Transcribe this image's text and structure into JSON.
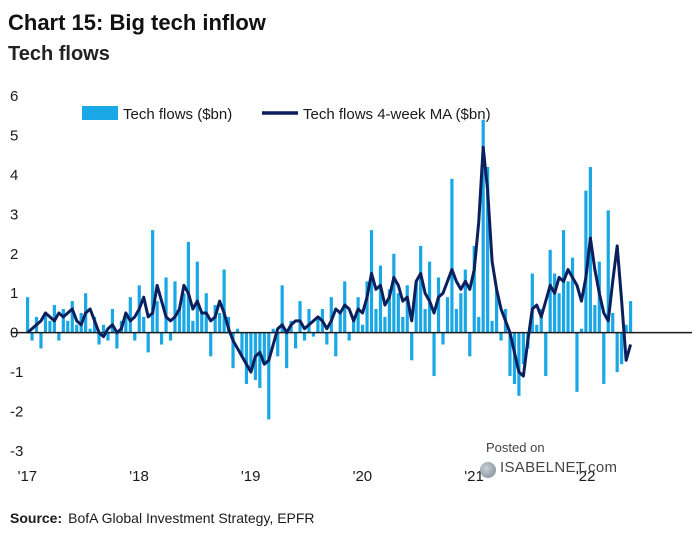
{
  "header": {
    "title": "Chart 15: Big tech inflow",
    "subtitle": "Tech flows"
  },
  "source": {
    "label": "Source:",
    "text": "BofA Global Investment Strategy, EPFR"
  },
  "watermark": {
    "posted": "Posted on",
    "brand": "ISABELNET.com"
  },
  "colors": {
    "bars": "#1aa7e6",
    "line": "#0b1f5c",
    "axis": "#1a1a1a"
  },
  "chart_data": {
    "type": "bar",
    "title": "Chart 15: Big tech inflow",
    "subtitle": "Tech flows",
    "xlabel": "",
    "ylabel": "",
    "ylim": [
      -3,
      6
    ],
    "yticks": [
      -3,
      -2,
      -1,
      0,
      1,
      2,
      3,
      4,
      5,
      6
    ],
    "ytick_labels": [
      "-3",
      "-2",
      "-1",
      "0",
      "1",
      "2",
      "3",
      "4",
      "5",
      "6"
    ],
    "xtick_labels": [
      "'17",
      "'18",
      "'19",
      "'20",
      "'21",
      "'22"
    ],
    "xlim": [
      2016.95,
      2022.95
    ],
    "grid": false,
    "legend_position": "top-left",
    "series": [
      {
        "name": "Tech flows ($bn)",
        "type": "bar",
        "x": [
          2017.0,
          2017.04,
          2017.08,
          2017.12,
          2017.16,
          2017.2,
          2017.24,
          2017.28,
          2017.32,
          2017.36,
          2017.4,
          2017.44,
          2017.48,
          2017.52,
          2017.56,
          2017.6,
          2017.64,
          2017.68,
          2017.72,
          2017.76,
          2017.8,
          2017.84,
          2017.88,
          2017.92,
          2017.96,
          2018.0,
          2018.04,
          2018.08,
          2018.12,
          2018.16,
          2018.2,
          2018.24,
          2018.28,
          2018.32,
          2018.36,
          2018.4,
          2018.44,
          2018.48,
          2018.52,
          2018.56,
          2018.6,
          2018.64,
          2018.68,
          2018.72,
          2018.76,
          2018.8,
          2018.84,
          2018.88,
          2018.92,
          2018.96,
          2019.0,
          2019.04,
          2019.08,
          2019.12,
          2019.16,
          2019.2,
          2019.24,
          2019.28,
          2019.32,
          2019.36,
          2019.4,
          2019.44,
          2019.48,
          2019.52,
          2019.56,
          2019.6,
          2019.64,
          2019.68,
          2019.72,
          2019.76,
          2019.8,
          2019.84,
          2019.88,
          2019.92,
          2019.96,
          2020.0,
          2020.04,
          2020.08,
          2020.12,
          2020.16,
          2020.2,
          2020.24,
          2020.28,
          2020.32,
          2020.36,
          2020.4,
          2020.44,
          2020.48,
          2020.52,
          2020.56,
          2020.6,
          2020.64,
          2020.68,
          2020.72,
          2020.76,
          2020.8,
          2020.84,
          2020.88,
          2020.92,
          2020.96,
          2021.0,
          2021.04,
          2021.08,
          2021.12,
          2021.16,
          2021.2,
          2021.24,
          2021.28,
          2021.32,
          2021.36,
          2021.4,
          2021.44,
          2021.48,
          2021.52,
          2021.56,
          2021.6,
          2021.64,
          2021.68,
          2021.72,
          2021.76,
          2021.8,
          2021.84,
          2021.88,
          2021.92,
          2021.96,
          2022.0,
          2022.04,
          2022.08,
          2022.12,
          2022.16,
          2022.2,
          2022.24,
          2022.28,
          2022.32,
          2022.36,
          2022.4
        ],
        "values": [
          0.9,
          -0.2,
          0.4,
          -0.4,
          0.5,
          0.3,
          0.7,
          -0.2,
          0.6,
          0.3,
          0.8,
          0.2,
          0.5,
          1.0,
          0.1,
          0.4,
          -0.3,
          0.2,
          -0.2,
          0.6,
          -0.4,
          0.3,
          0.4,
          0.9,
          -0.2,
          1.2,
          0.4,
          -0.5,
          2.6,
          0.8,
          -0.3,
          1.4,
          -0.2,
          1.3,
          0.6,
          1.0,
          2.3,
          0.3,
          1.8,
          0.5,
          1.0,
          -0.6,
          0.7,
          0.5,
          1.6,
          0.4,
          -0.9,
          0.1,
          -0.6,
          -1.3,
          -0.9,
          -1.2,
          -1.4,
          -0.8,
          -2.2,
          0.1,
          -0.6,
          1.2,
          -0.9,
          0.3,
          -0.4,
          0.8,
          -0.2,
          0.6,
          -0.1,
          0.4,
          0.6,
          -0.3,
          0.9,
          -0.6,
          0.5,
          1.3,
          -0.2,
          0.4,
          0.9,
          0.2,
          1.3,
          2.6,
          0.6,
          1.7,
          0.4,
          1.1,
          2.0,
          1.0,
          0.4,
          1.2,
          -0.7,
          1.3,
          2.2,
          0.6,
          1.8,
          -1.1,
          1.4,
          -0.3,
          0.9,
          3.9,
          0.6,
          1.0,
          1.6,
          -0.6,
          2.2,
          0.4,
          5.4,
          4.2,
          0.3,
          1.1,
          -0.2,
          0.6,
          -1.1,
          -1.3,
          -1.6,
          -0.8,
          -0.4,
          1.5,
          0.2,
          0.6,
          -1.1,
          2.1,
          1.5,
          1.0,
          2.6,
          1.3,
          1.9,
          -1.5,
          0.1,
          3.6,
          4.2,
          0.7,
          1.8,
          -1.3,
          3.1,
          0.5,
          -1.0,
          -0.8,
          0.2,
          0.8
        ]
      },
      {
        "name": "Tech flows 4-week MA ($bn)",
        "type": "line",
        "x": [
          2017.0,
          2017.04,
          2017.08,
          2017.12,
          2017.16,
          2017.2,
          2017.24,
          2017.28,
          2017.32,
          2017.36,
          2017.4,
          2017.44,
          2017.48,
          2017.52,
          2017.56,
          2017.6,
          2017.64,
          2017.68,
          2017.72,
          2017.76,
          2017.8,
          2017.84,
          2017.88,
          2017.92,
          2017.96,
          2018.0,
          2018.04,
          2018.08,
          2018.12,
          2018.16,
          2018.2,
          2018.24,
          2018.28,
          2018.32,
          2018.36,
          2018.4,
          2018.44,
          2018.48,
          2018.52,
          2018.56,
          2018.6,
          2018.64,
          2018.68,
          2018.72,
          2018.76,
          2018.8,
          2018.84,
          2018.88,
          2018.92,
          2018.96,
          2019.0,
          2019.04,
          2019.08,
          2019.12,
          2019.16,
          2019.2,
          2019.24,
          2019.28,
          2019.32,
          2019.36,
          2019.4,
          2019.44,
          2019.48,
          2019.52,
          2019.56,
          2019.6,
          2019.64,
          2019.68,
          2019.72,
          2019.76,
          2019.8,
          2019.84,
          2019.88,
          2019.92,
          2019.96,
          2020.0,
          2020.04,
          2020.08,
          2020.12,
          2020.16,
          2020.2,
          2020.24,
          2020.28,
          2020.32,
          2020.36,
          2020.4,
          2020.44,
          2020.48,
          2020.52,
          2020.56,
          2020.6,
          2020.64,
          2020.68,
          2020.72,
          2020.76,
          2020.8,
          2020.84,
          2020.88,
          2020.92,
          2020.96,
          2021.0,
          2021.04,
          2021.08,
          2021.12,
          2021.16,
          2021.2,
          2021.24,
          2021.28,
          2021.32,
          2021.36,
          2021.4,
          2021.44,
          2021.48,
          2021.52,
          2021.56,
          2021.6,
          2021.64,
          2021.68,
          2021.72,
          2021.76,
          2021.8,
          2021.84,
          2021.88,
          2021.92,
          2021.96,
          2022.0,
          2022.04,
          2022.08,
          2022.12,
          2022.16,
          2022.2,
          2022.24,
          2022.28,
          2022.32,
          2022.36,
          2022.4
        ],
        "values": [
          0.0,
          0.1,
          0.2,
          0.3,
          0.5,
          0.4,
          0.3,
          0.5,
          0.4,
          0.5,
          0.6,
          0.3,
          0.2,
          0.5,
          0.6,
          0.3,
          0.0,
          -0.1,
          0.1,
          0.2,
          0.0,
          0.1,
          0.5,
          0.3,
          0.4,
          0.6,
          0.9,
          0.4,
          0.5,
          1.2,
          0.8,
          0.4,
          0.3,
          0.4,
          0.6,
          1.2,
          1.0,
          0.6,
          0.8,
          0.5,
          0.5,
          0.3,
          0.4,
          0.8,
          0.5,
          0.1,
          -0.2,
          -0.4,
          -0.6,
          -0.8,
          -1.0,
          -0.6,
          -0.5,
          -0.8,
          -0.7,
          -0.3,
          0.1,
          0.2,
          0.0,
          0.2,
          0.3,
          0.3,
          0.1,
          0.2,
          0.3,
          0.4,
          0.3,
          0.1,
          0.3,
          0.6,
          0.5,
          0.7,
          0.6,
          0.3,
          0.6,
          0.5,
          0.9,
          1.5,
          1.1,
          1.2,
          0.7,
          0.9,
          1.4,
          1.2,
          0.8,
          0.9,
          0.3,
          1.3,
          1.5,
          1.0,
          0.8,
          0.5,
          0.9,
          1.0,
          1.3,
          1.6,
          1.3,
          1.1,
          1.3,
          1.1,
          1.6,
          2.8,
          4.7,
          3.6,
          1.8,
          1.1,
          0.6,
          0.3,
          0.0,
          -0.5,
          -1.0,
          -1.1,
          -0.2,
          0.6,
          0.7,
          0.4,
          0.8,
          1.2,
          1.0,
          1.4,
          1.3,
          1.6,
          1.4,
          1.2,
          0.8,
          1.4,
          2.4,
          1.6,
          1.0,
          0.5,
          0.3,
          1.3,
          2.2,
          0.8,
          -0.7,
          -0.3
        ]
      }
    ]
  }
}
